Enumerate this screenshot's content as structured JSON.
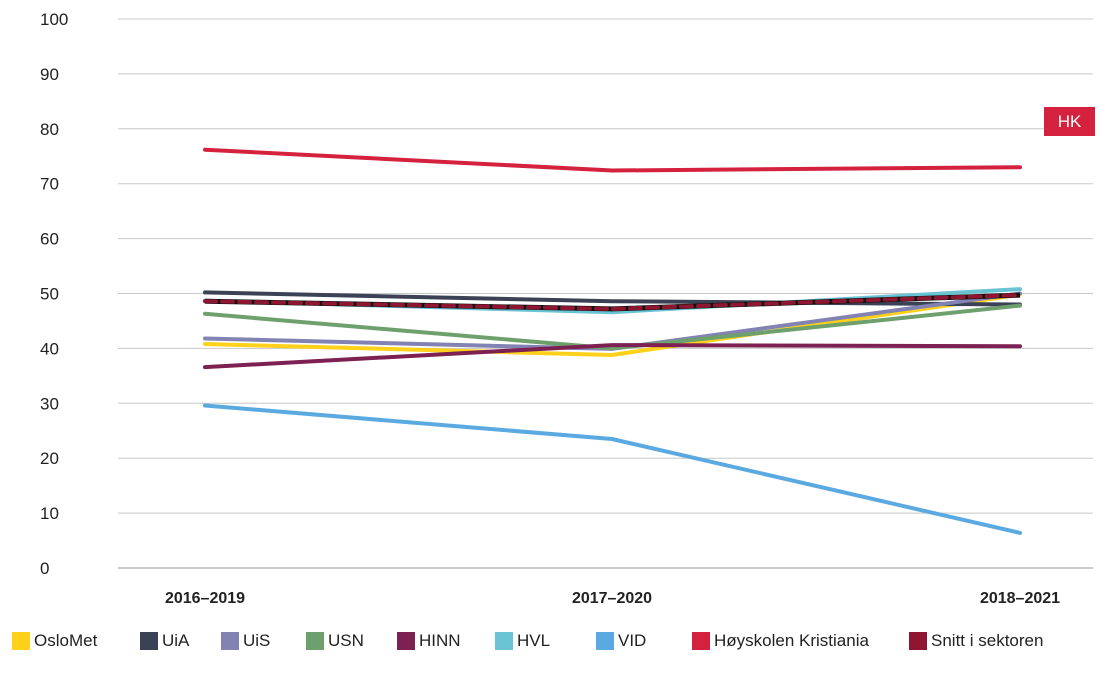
{
  "chart_data": {
    "type": "line",
    "categories": [
      "2016–2019",
      "2017–2020",
      "2018–2021"
    ],
    "ylim": [
      0,
      100
    ],
    "yticks": [
      "0",
      "10",
      "20",
      "30",
      "40",
      "50",
      "60",
      "70",
      "80",
      "90",
      "100"
    ],
    "grid": true,
    "legend_position": "bottom",
    "series": [
      {
        "name": "OsloMet",
        "color": "#ffd11a",
        "values": [
          40.8,
          38.8,
          49.8
        ]
      },
      {
        "name": "UiA",
        "color": "#3b4256",
        "values": [
          50.2,
          48.6,
          48.0
        ]
      },
      {
        "name": "UiS",
        "color": "#8283b2",
        "values": [
          41.8,
          39.9,
          50.0
        ]
      },
      {
        "name": "USN",
        "color": "#6ea06d",
        "values": [
          46.3,
          40.0,
          47.8
        ]
      },
      {
        "name": "HINN",
        "color": "#7d2052",
        "values": [
          36.6,
          40.6,
          40.4
        ]
      },
      {
        "name": "HVL",
        "color": "#6ac3d3",
        "values": [
          48.7,
          46.6,
          50.8
        ]
      },
      {
        "name": "VID",
        "color": "#5aa9e0",
        "values": [
          29.6,
          23.5,
          6.4
        ]
      },
      {
        "name": "Høyskolen Kristiania",
        "color": "#d4213d",
        "values": [
          76.2,
          72.4,
          73.0
        ]
      },
      {
        "name": "Snitt i sektoren",
        "color": "#8e1630",
        "values": [
          48.6,
          47.2,
          49.7
        ],
        "dashed": true
      }
    ],
    "annotation": {
      "text": "HK",
      "color": "#d4213d"
    }
  }
}
